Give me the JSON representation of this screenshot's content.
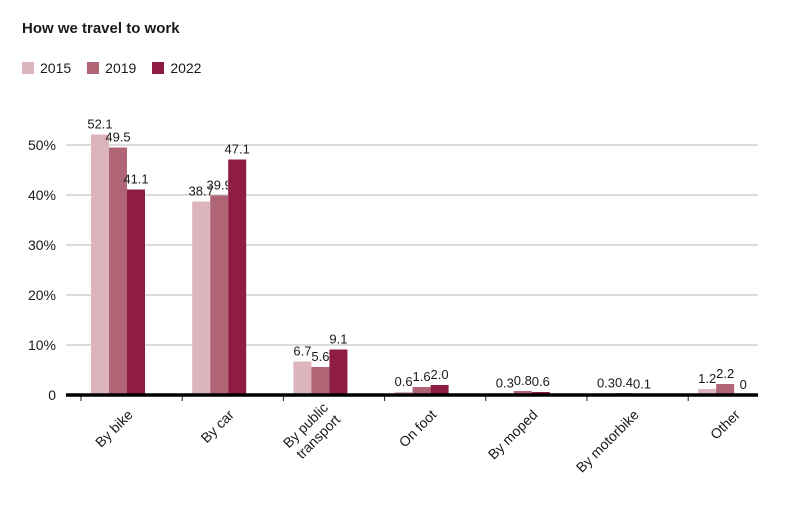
{
  "chart_data": {
    "type": "bar",
    "title": "How we travel to work",
    "categories": [
      [
        "By bike"
      ],
      [
        "By car"
      ],
      [
        "By public",
        "transport"
      ],
      [
        "On foot"
      ],
      [
        "By moped"
      ],
      [
        "By motorbike"
      ],
      [
        "Other"
      ]
    ],
    "series": [
      {
        "name": "2015",
        "color": "#dcb4bb",
        "values": [
          52.1,
          38.7,
          6.7,
          0.6,
          0.3,
          0.3,
          1.2
        ],
        "labels": [
          "52.1",
          "38.7",
          "6.7",
          "0.6",
          "0.3",
          "0.3",
          "1.2"
        ]
      },
      {
        "name": "2019",
        "color": "#b06577",
        "values": [
          49.5,
          39.9,
          5.6,
          1.6,
          0.8,
          0.4,
          2.2
        ],
        "labels": [
          "49.5",
          "39.9",
          "5.6",
          "1.6",
          "0.8",
          "0.4",
          "2.2"
        ]
      },
      {
        "name": "2022",
        "color": "#8e1c43",
        "values": [
          41.1,
          47.1,
          9.1,
          2.0,
          0.6,
          0.1,
          0
        ],
        "labels": [
          "41.1",
          "47.1",
          "9.1",
          "2.0",
          "0.6",
          "0.1",
          "0"
        ]
      }
    ],
    "yticks": [
      0,
      10,
      20,
      30,
      40,
      50
    ],
    "ytick_labels": [
      "0",
      "10%",
      "20%",
      "30%",
      "40%",
      "50%"
    ],
    "ylim": [
      0,
      50
    ],
    "grid": true,
    "legend": "top-left"
  }
}
